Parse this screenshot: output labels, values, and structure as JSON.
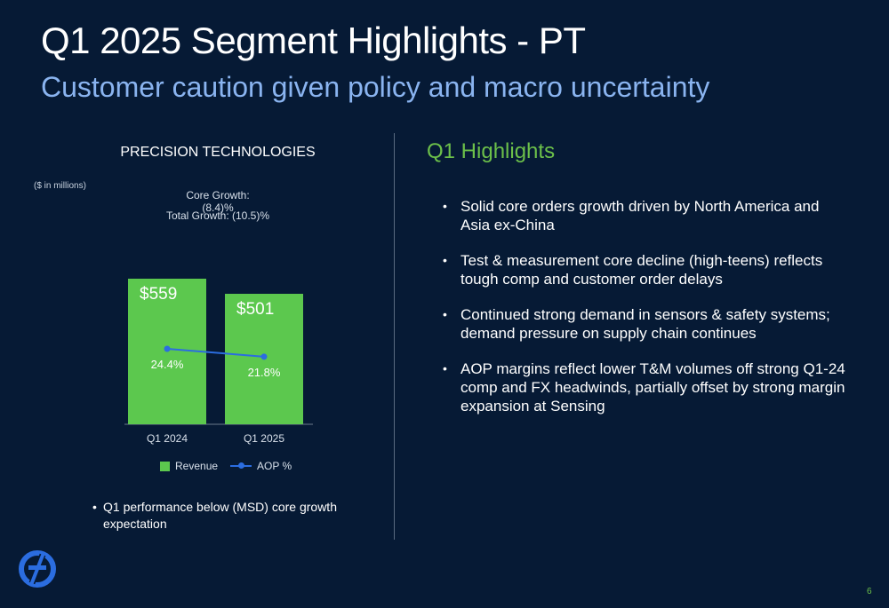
{
  "header": {
    "title": "Q1 2025 Segment Highlights - PT",
    "subtitle": "Customer caution given policy and macro uncertainty"
  },
  "left_panel": {
    "segment_title": "PRECISION TECHNOLOGIES",
    "units_note": "($ in millions)",
    "core_growth": "Core Growth: (8.4)%",
    "total_growth": "Total Growth: (10.5)%",
    "note": "Q1 performance below (MSD) core growth expectation"
  },
  "chart_data": {
    "type": "bar",
    "categories": [
      "Q1 2024",
      "Q1 2025"
    ],
    "series": [
      {
        "name": "Revenue",
        "type": "bar",
        "values": [
          559,
          501
        ],
        "labels": [
          "$559",
          "$501"
        ],
        "color": "#5cc84e"
      },
      {
        "name": "AOP %",
        "type": "line",
        "values": [
          24.4,
          21.8
        ],
        "labels": [
          "24.4%",
          "21.8%"
        ],
        "color": "#2b6de0"
      }
    ],
    "legend_position": "bottom",
    "grid": false
  },
  "highlights": {
    "title": "Q1 Highlights",
    "bullets": [
      "Solid core orders growth driven by North America and Asia ex-China",
      "Test & measurement core decline (high-teens) reflects tough comp and customer order delays",
      "Continued strong demand in sensors & safety systems; demand pressure on supply chain continues",
      "AOP margins reflect lower T&M volumes off strong Q1-24 comp and FX headwinds, partially offset by strong margin expansion at Sensing"
    ]
  },
  "footer": {
    "page_number": "6",
    "logo_icon": "company-logo-icon",
    "accent_color": "#6cc04a",
    "background_color": "#061a35"
  }
}
